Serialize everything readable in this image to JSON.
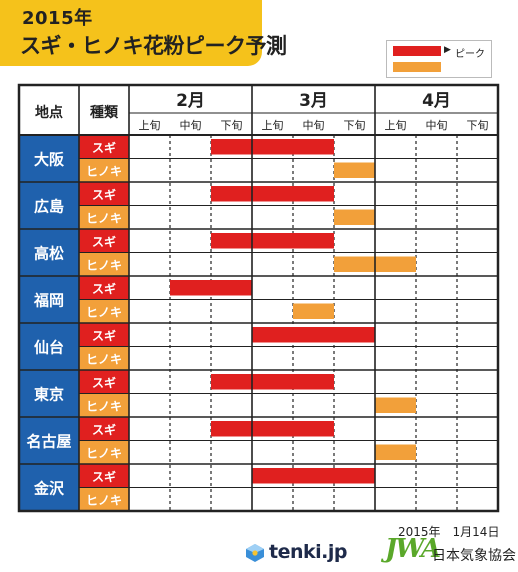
{
  "title": {
    "year": "2015年",
    "main": "スギ・ヒノキ花粉ピーク予測"
  },
  "legend": {
    "label": "ピーク",
    "arrow": "▶"
  },
  "colors": {
    "sugi": "#e0201f",
    "hinoki": "#f2a03a",
    "location_bg": "#1f61ad",
    "header_bg": "#ffffff",
    "title_bg": "#f5c21b"
  },
  "chart_data": {
    "type": "table",
    "headers": {
      "location": "地点",
      "type": "種類"
    },
    "months": [
      "2月",
      "3月",
      "4月"
    ],
    "periods": [
      "上旬",
      "中旬",
      "下旬"
    ],
    "types": [
      "スギ",
      "ヒノキ"
    ],
    "locations": [
      {
        "name": "大阪",
        "sugi": [
          3,
          5
        ],
        "hinoki": [
          6,
          6
        ]
      },
      {
        "name": "広島",
        "sugi": [
          3,
          5
        ],
        "hinoki": [
          6,
          6
        ]
      },
      {
        "name": "高松",
        "sugi": [
          3,
          5
        ],
        "hinoki": [
          6,
          7
        ]
      },
      {
        "name": "福岡",
        "sugi": [
          2,
          3
        ],
        "hinoki": [
          5,
          5
        ]
      },
      {
        "name": "仙台",
        "sugi": [
          4,
          6
        ],
        "hinoki": null
      },
      {
        "name": "東京",
        "sugi": [
          3,
          5
        ],
        "hinoki": [
          7,
          7
        ]
      },
      {
        "name": "名古屋",
        "sugi": [
          3,
          5
        ],
        "hinoki": [
          7,
          7
        ]
      },
      {
        "name": "金沢",
        "sugi": [
          4,
          6
        ],
        "hinoki": null
      }
    ]
  },
  "footer": {
    "date": "2015年　1月14日",
    "tenki": "tenki.jp",
    "jwa": "JWA",
    "org": "日本気象協会"
  }
}
